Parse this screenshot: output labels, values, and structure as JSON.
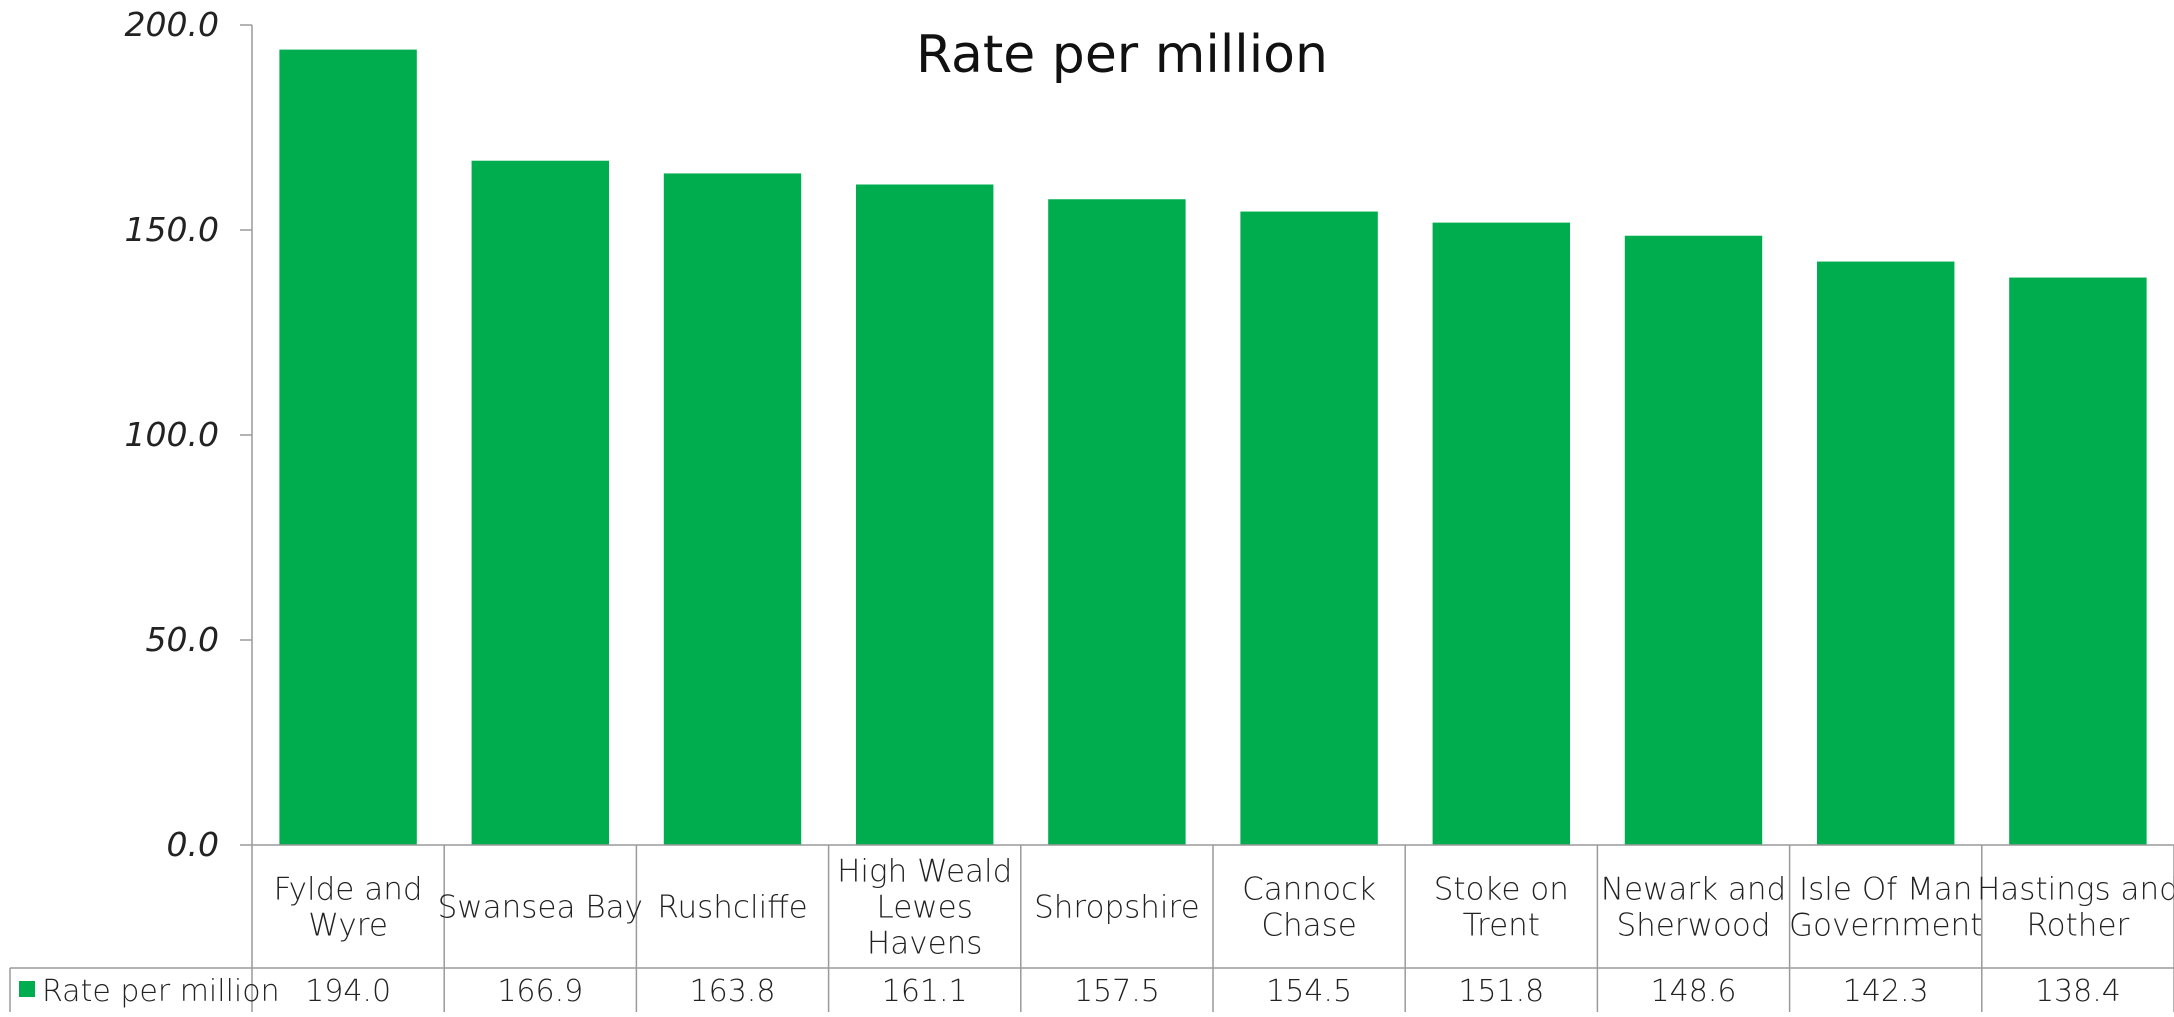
{
  "chart_data": {
    "type": "bar",
    "title": "Rate per million",
    "categories": [
      [
        "Fylde and",
        "Wyre"
      ],
      [
        "Swansea Bay"
      ],
      [
        "Rushcliffe"
      ],
      [
        "High Weald",
        "Lewes",
        "Havens"
      ],
      [
        "Shropshire"
      ],
      [
        "Cannock",
        "Chase"
      ],
      [
        "Stoke on",
        "Trent"
      ],
      [
        "Newark and",
        "Sherwood"
      ],
      [
        "Isle Of Man",
        "Government"
      ],
      [
        "Hastings and",
        "Rother"
      ]
    ],
    "series": [
      {
        "name": "Rate per million",
        "values": [
          194.0,
          166.9,
          163.8,
          161.1,
          157.5,
          154.5,
          151.8,
          148.6,
          142.3,
          138.4
        ],
        "value_labels": [
          "194.0",
          "166.9",
          "163.8",
          "161.1",
          "157.5",
          "154.5",
          "151.8",
          "148.6",
          "142.3",
          "138.4"
        ],
        "color": "#00ad4e"
      }
    ],
    "ylim": [
      0,
      200
    ],
    "yticks": [
      "0.0",
      "50.0",
      "100.0",
      "150.0",
      "200.0"
    ],
    "ytick_values": [
      0,
      50,
      100,
      150,
      200
    ],
    "grid": false,
    "legend": "data-table-left",
    "data_table": true
  },
  "colors": {
    "bar": "#00ad4e",
    "axis": "#9a9a9a",
    "text": "#222222"
  }
}
